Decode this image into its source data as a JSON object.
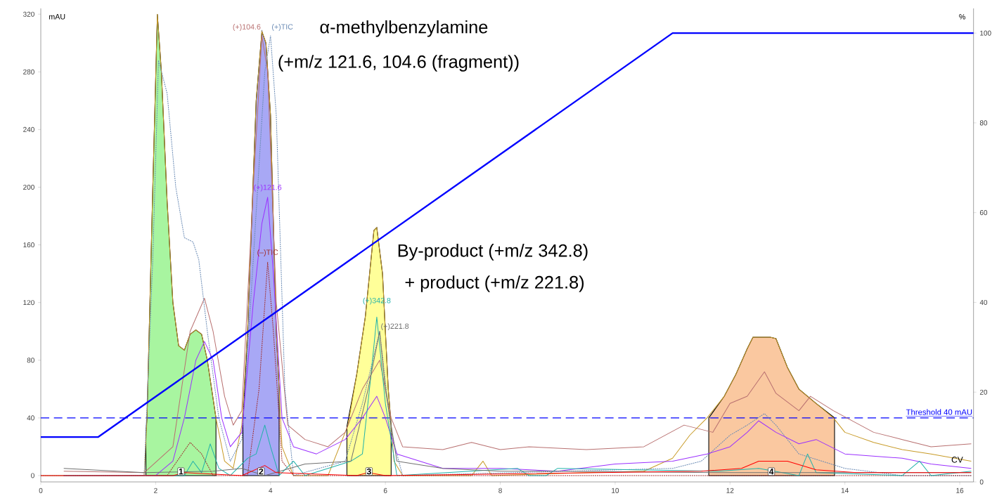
{
  "chart_data": {
    "type": "line",
    "xlim": [
      0,
      16.24
    ],
    "ylim": [
      -4.4,
      324
    ],
    "y2lim": [
      0,
      105.5
    ],
    "xticks": [
      0,
      2,
      4,
      6,
      8,
      10,
      12,
      14,
      16
    ],
    "yticks": [
      0,
      40,
      80,
      120,
      160,
      200,
      240,
      280,
      320
    ],
    "y2ticks": [
      0,
      20,
      40,
      60,
      80,
      100
    ],
    "ylabel": "mAU",
    "y2label": "%",
    "series": [
      {
        "color": "#c89b28",
        "x": [
          0,
          1.8,
          1.85,
          1.95,
          2.03,
          2.1,
          2.2,
          2.3,
          2.4,
          2.5,
          2.6,
          2.7,
          2.8,
          2.9,
          3.05,
          3.2,
          3.35,
          3.5,
          3.6,
          3.75,
          3.85,
          3.92,
          4.0,
          4.1,
          4.2,
          4.4,
          5.0,
          5.35,
          5.5,
          5.65,
          5.8,
          5.85,
          5.95,
          6.05,
          6.15,
          6.3,
          7.5,
          7.7,
          7.85,
          9.5,
          10.5,
          11,
          11.3,
          11.6,
          11.9,
          12.1,
          12.3,
          12.4,
          12.7,
          12.8,
          13.0,
          13.2,
          13.5,
          13.8,
          14.0,
          14.5,
          15,
          15.5,
          16.2
        ],
        "values": [
          0,
          0,
          40,
          200,
          320,
          280,
          190,
          120,
          90,
          87,
          98,
          101,
          98,
          80,
          40,
          10,
          5,
          35,
          100,
          260,
          308,
          300,
          250,
          100,
          20,
          0,
          0,
          35,
          70,
          110,
          170,
          172,
          140,
          60,
          10,
          0,
          0,
          10,
          0,
          2,
          3,
          12,
          28,
          40,
          55,
          70,
          88,
          96,
          96,
          95,
          75,
          60,
          50,
          40,
          30,
          23,
          18,
          15,
          10
        ]
      },
      {
        "color": "#0000ff",
        "axis": "y2",
        "x": [
          0,
          1,
          11,
          16.24
        ],
        "values": [
          10,
          10,
          100,
          100
        ]
      },
      {
        "name": "(+)104.6",
        "color": "#b87070",
        "x": [
          0.4,
          1.8,
          2.3,
          2.6,
          2.85,
          3.0,
          3.2,
          3.35,
          3.5,
          3.7,
          3.85,
          3.95,
          4.1,
          4.3,
          4.6,
          5.0,
          5.3,
          5.6,
          5.9,
          6.1,
          6.3,
          7,
          7.5,
          8,
          8.5,
          9.5,
          10.5,
          11.2,
          11.7,
          12.0,
          12.3,
          12.6,
          12.8,
          13.2,
          13.4,
          13.8,
          14.5,
          15,
          15.5,
          16.2
        ],
        "values": [
          3,
          2,
          20,
          100,
          123,
          100,
          55,
          35,
          45,
          200,
          305,
          280,
          120,
          35,
          25,
          20,
          30,
          60,
          80,
          40,
          20,
          18,
          23,
          18,
          20,
          18,
          20,
          35,
          30,
          50,
          55,
          72,
          57,
          45,
          55,
          45,
          30,
          25,
          20,
          22
        ]
      },
      {
        "name": "(+)TIC",
        "color": "#6a8bb5",
        "line_style": "dotted",
        "x": [
          0,
          1.8,
          1.95,
          2.05,
          2.2,
          2.35,
          2.5,
          2.65,
          2.75,
          2.9,
          3.1,
          3.3,
          3.5,
          3.7,
          3.9,
          4.0,
          4.1,
          4.25,
          4.4,
          5.3,
          5.6,
          5.9,
          6.1,
          6.3,
          11,
          11.5,
          12,
          12.3,
          12.6,
          12.8,
          13.2,
          14,
          15,
          16.2
        ],
        "values": [
          0,
          0,
          150,
          288,
          265,
          200,
          165,
          162,
          150,
          100,
          40,
          10,
          25,
          150,
          280,
          305,
          250,
          60,
          0,
          10,
          50,
          100,
          30,
          0,
          5,
          10,
          28,
          35,
          43,
          35,
          15,
          5,
          0,
          0
        ]
      },
      {
        "name": "(+)121.6",
        "color": "#9b30ff",
        "x": [
          0.4,
          2.0,
          2.3,
          2.5,
          2.7,
          2.85,
          3.0,
          3.15,
          3.3,
          3.5,
          3.7,
          3.85,
          3.95,
          4.05,
          4.2,
          4.4,
          4.8,
          5.3,
          5.6,
          5.85,
          6.0,
          6.2,
          7,
          8,
          9,
          10,
          11,
          11.6,
          12,
          12.3,
          12.5,
          12.8,
          13.2,
          13.5,
          14,
          15,
          15.5,
          16.2
        ],
        "values": [
          0,
          0,
          10,
          40,
          80,
          93,
          80,
          40,
          20,
          30,
          120,
          175,
          193,
          140,
          40,
          20,
          15,
          25,
          40,
          55,
          40,
          15,
          5,
          5,
          3,
          8,
          10,
          15,
          20,
          30,
          38,
          30,
          22,
          25,
          15,
          12,
          8,
          5
        ]
      },
      {
        "name": "(–)TIC",
        "color": "#a03030",
        "line_style": "dotted",
        "x": [
          0.4,
          2.2,
          2.6,
          2.8,
          3.0,
          3.6,
          3.8,
          3.95,
          4.05,
          4.2,
          4.4,
          16.2
        ],
        "values": [
          0,
          0,
          23,
          15,
          0,
          0,
          60,
          148,
          100,
          10,
          0,
          0
        ]
      },
      {
        "name": "(+)342.8",
        "color": "#20b2aa",
        "x": [
          0.4,
          2.5,
          2.65,
          2.8,
          2.95,
          3.1,
          3.3,
          3.6,
          3.75,
          3.9,
          4.0,
          4.15,
          4.4,
          4.6,
          5.4,
          5.6,
          5.75,
          5.85,
          6.0,
          6.2,
          8.3,
          8.5,
          8.8,
          9,
          11.8,
          12.5,
          13.2,
          13.35,
          13.5,
          15,
          15.3,
          15.5,
          16.2
        ],
        "values": [
          0,
          0,
          10,
          2,
          22,
          5,
          0,
          12,
          15,
          35,
          20,
          0,
          10,
          0,
          10,
          15,
          70,
          110,
          50,
          0,
          5,
          0,
          0,
          5,
          3,
          5,
          0,
          15,
          2,
          0,
          10,
          0,
          3
        ]
      },
      {
        "name": "(+)221.8",
        "color": "#707070",
        "x": [
          0.4,
          1.8,
          3.0,
          3.5,
          3.9,
          4.6,
          5.4,
          5.7,
          5.9,
          6.0,
          6.2,
          7,
          8,
          9,
          10,
          12,
          16.2
        ],
        "values": [
          5,
          2,
          3,
          5,
          0,
          8,
          10,
          60,
          100,
          60,
          10,
          5,
          3,
          3,
          null,
          2,
          2
        ]
      },
      {
        "color": "#ff0000",
        "x": [
          0,
          2.3,
          2.5,
          3.5,
          3.9,
          4.1,
          5.5,
          5.7,
          6,
          11.5,
          12.2,
          12.5,
          13,
          13.5,
          14.2,
          16.2
        ],
        "values": [
          0,
          0,
          2,
          0,
          7,
          2,
          0,
          2,
          0,
          3,
          5,
          10,
          10,
          4,
          2,
          2
        ]
      },
      {
        "type": "area",
        "color": "#a8f5a0",
        "x": [
          1.83,
          1.85,
          1.95,
          2.03,
          2.1,
          2.2,
          2.3,
          2.4,
          2.5,
          2.6,
          2.7,
          2.8,
          2.9,
          3.05
        ],
        "values": [
          30,
          40,
          200,
          320,
          280,
          190,
          120,
          90,
          87,
          98,
          101,
          98,
          80,
          40
        ]
      },
      {
        "type": "area",
        "color": "#a8a8f5",
        "x": [
          3.52,
          3.6,
          3.75,
          3.85,
          3.92,
          4.0,
          4.1,
          4.15
        ],
        "values": [
          38,
          100,
          260,
          308,
          300,
          250,
          100,
          60
        ]
      },
      {
        "type": "area",
        "color": "#ffff99",
        "x": [
          5.33,
          5.5,
          5.65,
          5.8,
          5.85,
          5.95,
          6.05,
          6.1
        ],
        "values": [
          34,
          70,
          110,
          170,
          172,
          140,
          60,
          35
        ]
      },
      {
        "type": "area",
        "color": "#fac8a0",
        "x": [
          11.63,
          11.9,
          12.1,
          12.3,
          12.4,
          12.7,
          12.8,
          13.0,
          13.2,
          13.5,
          13.82
        ],
        "values": [
          40,
          55,
          70,
          88,
          96,
          96,
          95,
          75,
          60,
          50,
          40
        ]
      }
    ],
    "ref_lines": [
      {
        "axis": "y",
        "value": 40,
        "label": "Threshold 40 mAU",
        "color": "#0000ff",
        "line_style": "dashed"
      }
    ],
    "annotations": [
      "α-methylbenzylamine",
      "(+m/z 121.6, 104.6 (fragment))",
      "By-product (+m/z 342.8)",
      "+ product (+m/z 221.8)",
      "CV",
      {
        "text": "1",
        "x": 2.44,
        "y": 0
      },
      {
        "text": "2",
        "x": 3.835,
        "y": 0
      },
      {
        "text": "3",
        "x": 5.715,
        "y": 0
      },
      {
        "text": "4",
        "x": 12.72,
        "y": 0
      }
    ]
  }
}
